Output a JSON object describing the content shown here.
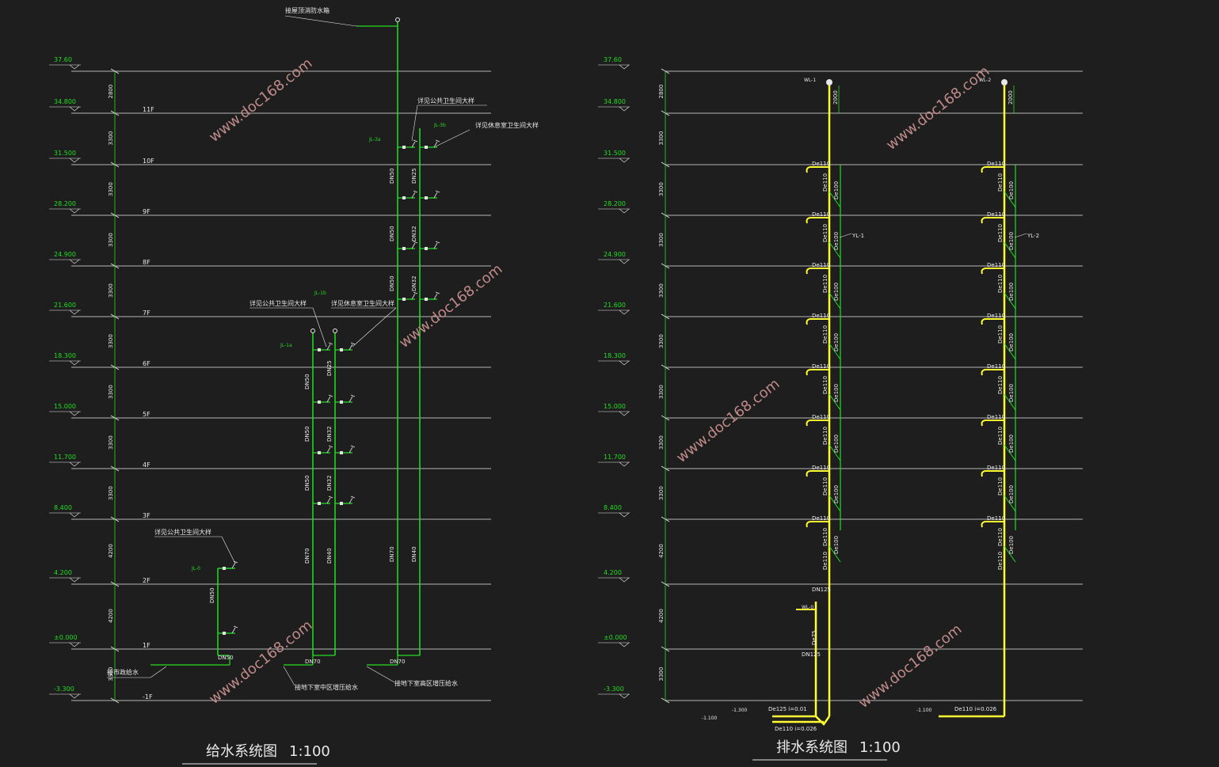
{
  "supply": {
    "title": "给水系统图",
    "scale": "1:100",
    "roof_tank_label": "接屋顶消防水箱",
    "elevations": [
      "37.60",
      "34.800",
      "31.500",
      "28.200",
      "24.900",
      "21.600",
      "18.300",
      "15.000",
      "11.700",
      "8.400",
      "4.200",
      "±0.000",
      "-3.300"
    ],
    "floor_heights": [
      "2800",
      "3300",
      "3300",
      "3300",
      "3300",
      "3300",
      "3300",
      "3300",
      "3300",
      "4200",
      "4200",
      "3300"
    ],
    "floors": [
      "11F",
      "10F",
      "9F",
      "8F",
      "7F",
      "6F",
      "5F",
      "4F",
      "3F",
      "2F",
      "1F",
      "-1F"
    ],
    "riser_ids": [
      "JL-3a",
      "JL-3b",
      "JL-1a",
      "JL-1b",
      "JL-0"
    ],
    "notes": {
      "public_toilet_upper": "详见公共卫生间大样",
      "dorm_toilet_upper": "详见休息室卫生间大样",
      "public_toilet_mid": "详见公共卫生间大样",
      "dorm_toilet_mid": "详见休息室卫生间大样",
      "public_toilet_low": "详见公共卫生间大样",
      "municipal": "接市政给水",
      "basement_mid": "接地下室中区增压给水",
      "basement_high": "接地下室高区增压给水"
    },
    "pipe_sizes": [
      "DN50",
      "DN25",
      "DN50",
      "DN32",
      "DN50",
      "DN32",
      "DN50",
      "DN25",
      "DN50",
      "DN32",
      "DN50",
      "DN32",
      "DN70",
      "DN40",
      "DN70",
      "DN40",
      "DN50",
      "DN50",
      "DN70",
      "DN70"
    ]
  },
  "drain": {
    "title": "排水系统图",
    "scale": "1:100",
    "elevations": [
      "37.60",
      "34.800",
      "31.500",
      "28.200",
      "24.900",
      "21.600",
      "18.300",
      "15.000",
      "11.700",
      "8.400",
      "4.200",
      "±0.000",
      "-3.300"
    ],
    "floor_heights": [
      "2800",
      "3300",
      "3300",
      "3300",
      "3300",
      "3300",
      "3300",
      "3300",
      "3300",
      "4200",
      "4200",
      "3300"
    ],
    "stack_ids": [
      "WL-1",
      "WL-2",
      "YL-1",
      "YL-2",
      "WL-0"
    ],
    "vent_height": "2000",
    "branch_size": "De110",
    "stack_sizes": [
      "De110",
      "De100",
      "DN125",
      "De75"
    ],
    "outlets": [
      "De125 i=0.01",
      "De110 i=0.026",
      "De110 i=0.026"
    ],
    "outlet_elev": [
      "-1.300",
      "-1.100",
      "-1.100"
    ]
  },
  "watermarks": [
    "www.doc168.com",
    "www.doc168.com",
    "www.doc168.com",
    "www.doc168.com",
    "www.doc168.com",
    "www.doc168.com"
  ],
  "colors": {
    "background": "#1e1e1e",
    "green": "#22dd22",
    "yellow": "#ffff33",
    "white": "#e8e8e8",
    "watermark": "#c08a8a"
  }
}
